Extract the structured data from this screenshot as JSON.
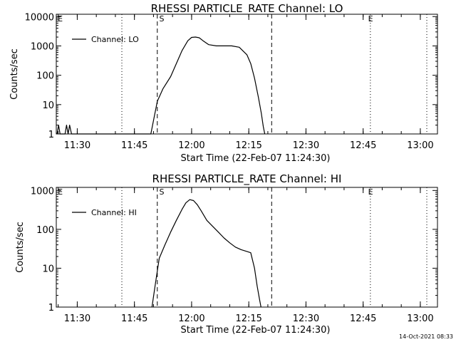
{
  "footer_timestamp": "14-Oct-2021 08:33",
  "chart_data": [
    {
      "type": "line",
      "title": "RHESSI PARTICLE_RATE Channel: LO",
      "xlabel": "Start Time (22-Feb-07 11:24:30)",
      "ylabel": "Counts/sec",
      "y_scale": "log",
      "xlim_minutes": [
        0,
        100
      ],
      "ylim": [
        1,
        12000
      ],
      "y_ticks": [
        {
          "value": 1,
          "label": "1"
        },
        {
          "value": 10,
          "label": "10"
        },
        {
          "value": 100,
          "label": "100"
        },
        {
          "value": 1000,
          "label": "1000"
        },
        {
          "value": 10000,
          "label": "10000"
        }
      ],
      "x_ticks": [
        {
          "minutes": 5.5,
          "label": "11:30"
        },
        {
          "minutes": 20.5,
          "label": "11:45"
        },
        {
          "minutes": 35.5,
          "label": "12:00"
        },
        {
          "minutes": 50.5,
          "label": "12:15"
        },
        {
          "minutes": 65.5,
          "label": "12:30"
        },
        {
          "minutes": 80.5,
          "label": "12:45"
        },
        {
          "minutes": 95.5,
          "label": "13:00"
        }
      ],
      "dotted_lines_minutes": [
        17.2,
        82.4,
        97.2
      ],
      "dashed_lines_minutes": [
        26.5,
        56.5
      ],
      "event_markers": [
        {
          "label": "E",
          "minutes": 0.4
        },
        {
          "label": "S",
          "minutes": 27.0
        },
        {
          "label": "E",
          "minutes": 81.8
        }
      ],
      "legend": {
        "entries": [
          "Channel: LO"
        ],
        "position": "top-left"
      },
      "series": [
        {
          "name": "Channel: LO",
          "x": [
            0.2,
            0.6,
            1.0,
            1.5,
            2.3,
            2.7,
            3.1,
            3.5,
            4.0,
            24.8,
            26.5,
            28.0,
            30.0,
            31.5,
            33.0,
            34.5,
            35.5,
            36.5,
            37.5,
            38.5,
            40.0,
            42.0,
            44.0,
            46.0,
            48.0,
            50.0,
            51.0,
            52.0,
            53.0,
            53.8,
            54.3,
            54.7
          ],
          "y": [
            1,
            2,
            1,
            1,
            1,
            2,
            1,
            2,
            1,
            1,
            13,
            35,
            90,
            250,
            700,
            1500,
            1950,
            2000,
            1900,
            1500,
            1100,
            1000,
            1000,
            1000,
            900,
            500,
            250,
            80,
            18,
            5,
            1.8,
            1
          ]
        }
      ]
    },
    {
      "type": "line",
      "title": "RHESSI PARTICLE_RATE Channel: HI",
      "xlabel": "Start Time (22-Feb-07 11:24:30)",
      "ylabel": "Counts/sec",
      "y_scale": "log",
      "xlim_minutes": [
        0,
        100
      ],
      "ylim": [
        1,
        1200
      ],
      "y_ticks": [
        {
          "value": 1,
          "label": "1"
        },
        {
          "value": 10,
          "label": "10"
        },
        {
          "value": 100,
          "label": "100"
        },
        {
          "value": 1000,
          "label": "1000"
        }
      ],
      "x_ticks": [
        {
          "minutes": 5.5,
          "label": "11:30"
        },
        {
          "minutes": 20.5,
          "label": "11:45"
        },
        {
          "minutes": 35.5,
          "label": "12:00"
        },
        {
          "minutes": 50.5,
          "label": "12:15"
        },
        {
          "minutes": 65.5,
          "label": "12:30"
        },
        {
          "minutes": 80.5,
          "label": "12:45"
        },
        {
          "minutes": 95.5,
          "label": "13:00"
        }
      ],
      "dotted_lines_minutes": [
        17.2,
        82.4,
        97.2
      ],
      "dashed_lines_minutes": [
        26.5,
        56.5
      ],
      "event_markers": [
        {
          "label": "E",
          "minutes": 0.4
        },
        {
          "label": "S",
          "minutes": 27.0
        },
        {
          "label": "E",
          "minutes": 81.8
        }
      ],
      "legend": {
        "entries": [
          "Channel: HI"
        ],
        "position": "top-left"
      },
      "series": [
        {
          "name": "Channel: HI",
          "x": [
            25.1,
            26.0,
            27.0,
            28.5,
            30.0,
            31.5,
            33.0,
            34.0,
            35.0,
            36.0,
            37.0,
            38.0,
            39.5,
            41.0,
            42.5,
            44.0,
            45.5,
            47.0,
            48.5,
            50.0,
            51.0,
            52.0,
            52.7,
            53.3,
            53.7
          ],
          "y": [
            1,
            4,
            18,
            40,
            85,
            170,
            330,
            480,
            580,
            550,
            430,
            300,
            170,
            120,
            85,
            60,
            45,
            35,
            30,
            27,
            25,
            10,
            3.5,
            1.6,
            1
          ]
        }
      ]
    }
  ]
}
